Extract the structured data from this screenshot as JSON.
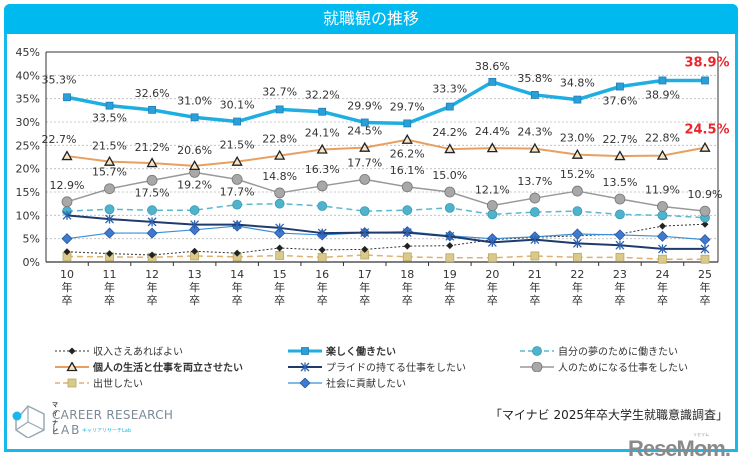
{
  "page": {
    "title": "就職観の推移",
    "source": "「マイナビ 2025年卒大学生就職意識調査」",
    "logo": {
      "small": "マイナビ",
      "main": "CAREER RESEARCH",
      "lab": "LAB",
      "sub": "キャリアリサーチLab"
    },
    "watermark": "ReseMom.",
    "watermark_small": "リセマム"
  },
  "chart_data": {
    "type": "line",
    "title": "就職観の推移",
    "xlabel": "",
    "ylabel": "",
    "categories": [
      "10年卒",
      "11年卒",
      "12年卒",
      "13年卒",
      "14年卒",
      "15年卒",
      "16年卒",
      "17年卒",
      "18年卒",
      "19年卒",
      "20年卒",
      "21年卒",
      "22年卒",
      "23年卒",
      "24年卒",
      "25年卒"
    ],
    "x_tick_labels": [
      [
        "10",
        "年",
        "卒"
      ],
      [
        "11",
        "年",
        "卒"
      ],
      [
        "12",
        "年",
        "卒"
      ],
      [
        "13",
        "年",
        "卒"
      ],
      [
        "14",
        "年",
        "卒"
      ],
      [
        "15",
        "年",
        "卒"
      ],
      [
        "16",
        "年",
        "卒"
      ],
      [
        "17",
        "年",
        "卒"
      ],
      [
        "18",
        "年",
        "卒"
      ],
      [
        "19",
        "年",
        "卒"
      ],
      [
        "20",
        "年",
        "卒"
      ],
      [
        "21",
        "年",
        "卒"
      ],
      [
        "22",
        "年",
        "卒"
      ],
      [
        "23",
        "年",
        "卒"
      ],
      [
        "24",
        "年",
        "卒"
      ],
      [
        "25",
        "年",
        "卒"
      ]
    ],
    "ylim": [
      0,
      45
    ],
    "y_ticks": [
      "0%",
      "5%",
      "10%",
      "15%",
      "20%",
      "25%",
      "30%",
      "35%",
      "40%",
      "45%"
    ],
    "grid": true,
    "legend_position": "bottom",
    "series": [
      {
        "name": "収入さえあればよい",
        "color": "#333333",
        "style": "dotted",
        "marker": "diamond-small",
        "width": 1,
        "values": [
          2.2,
          1.8,
          1.5,
          2.3,
          1.9,
          3.0,
          2.6,
          2.7,
          3.4,
          3.5,
          4.8,
          5.3,
          5.6,
          6.0,
          7.7,
          8.1
        ],
        "labeled": false
      },
      {
        "name": "楽しく働きたい",
        "color": "#1eaee2",
        "style": "solid",
        "marker": "square",
        "width": 3.5,
        "bold": true,
        "values": [
          35.3,
          33.5,
          32.6,
          31.0,
          30.1,
          32.7,
          32.2,
          29.9,
          29.7,
          33.3,
          38.6,
          35.8,
          34.8,
          37.6,
          38.9,
          38.9
        ],
        "labeled": true,
        "labels": [
          "35.3%",
          "33.5%",
          "32.6%",
          "31.0%",
          "30.1%",
          "32.7%",
          "32.2%",
          "29.9%",
          "29.7%",
          "33.3%",
          "38.6%",
          "35.8%",
          "34.8%",
          "37.6%",
          "38.9%",
          "38.9%"
        ]
      },
      {
        "name": "自分の夢のために働きたい",
        "color": "#5bb8d0",
        "style": "dashed",
        "marker": "circle",
        "width": 1.5,
        "values": [
          10.9,
          11.3,
          11.1,
          11.1,
          12.3,
          12.5,
          12.0,
          10.9,
          11.1,
          11.6,
          10.2,
          10.7,
          10.9,
          10.2,
          10.0,
          9.5
        ],
        "labeled": false
      },
      {
        "name": "個人の生活と仕事を両立させたい",
        "color": "#e8a060",
        "style": "solid",
        "marker": "triangle",
        "width": 2,
        "bold": true,
        "values": [
          22.7,
          21.5,
          21.2,
          20.6,
          21.5,
          22.8,
          24.1,
          24.5,
          26.2,
          24.2,
          24.4,
          24.3,
          23.0,
          22.7,
          22.8,
          24.5
        ],
        "labeled": true,
        "labels": [
          "22.7%",
          "21.5%",
          "21.2%",
          "20.6%",
          "21.5%",
          "22.8%",
          "24.1%",
          "24.5%",
          "26.2%",
          "24.2%",
          "24.4%",
          "24.3%",
          "23.0%",
          "22.7%",
          "22.8%",
          "24.5%"
        ]
      },
      {
        "name": "プライドの持てる仕事をしたい",
        "color": "#1f3b6e",
        "style": "solid",
        "marker": "asterisk",
        "width": 2,
        "values": [
          10.0,
          9.2,
          8.6,
          8.0,
          8.0,
          7.3,
          6.2,
          6.3,
          6.3,
          5.5,
          4.2,
          4.8,
          4.0,
          3.6,
          2.8,
          2.8
        ],
        "labeled": false
      },
      {
        "name": "人のためになる仕事をしたい",
        "color": "#999999",
        "style": "solid",
        "marker": "circle",
        "width": 1.5,
        "values": [
          12.9,
          15.7,
          17.5,
          19.2,
          17.7,
          14.8,
          16.3,
          17.7,
          16.1,
          15.0,
          12.1,
          13.7,
          15.2,
          13.5,
          11.9,
          10.9
        ],
        "labeled": true,
        "labels": [
          "12.9%",
          "15.7%",
          "17.5%",
          "19.2%",
          "17.7%",
          "14.8%",
          "16.3%",
          "17.7%",
          "16.1%",
          "15.0%",
          "12.1%",
          "13.7%",
          "15.2%",
          "13.5%",
          "11.9%",
          "10.9%"
        ]
      },
      {
        "name": "出世したい",
        "color": "#e0b070",
        "style": "dashed",
        "marker": "square-tan",
        "width": 1.5,
        "values": [
          1.2,
          1.1,
          1.0,
          1.3,
          1.1,
          1.4,
          1.0,
          1.5,
          1.1,
          0.9,
          0.9,
          1.3,
          1.0,
          1.0,
          0.6,
          0.6
        ],
        "labeled": false
      },
      {
        "name": "社会に貢献したい",
        "color": "#3a8fd6",
        "style": "solid",
        "marker": "diamond",
        "width": 1.2,
        "values": [
          5.0,
          6.2,
          6.2,
          6.9,
          7.7,
          6.2,
          5.8,
          6.3,
          6.5,
          5.6,
          5.0,
          5.4,
          6.0,
          5.8,
          5.5,
          4.8
        ],
        "labeled": false
      }
    ],
    "highlight_labels": [
      {
        "series": "楽しく働きたい",
        "text": "38.9%",
        "color": "#e8262c"
      },
      {
        "series": "個人の生活と仕事を両立させたい",
        "text": "24.5%",
        "color": "#e8262c"
      }
    ]
  }
}
